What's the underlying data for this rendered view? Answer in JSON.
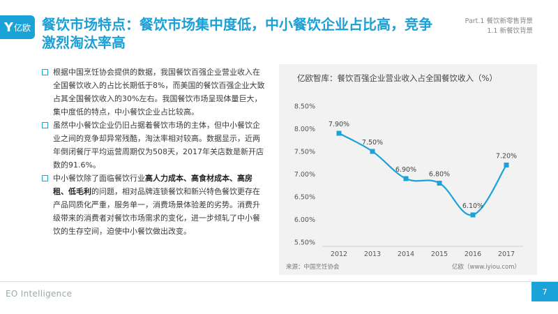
{
  "logo": {
    "mark": "Y",
    "text": "亿欧"
  },
  "title": "餐饮市场特点：餐饮市场集中度低，中小餐饮企业占比高，竞争激烈淘汰率高",
  "part": {
    "line1": "Part.1 餐饮新零售背景",
    "line2": "1.1 新餐饮背景"
  },
  "bullets": [
    {
      "text": "根据中国烹饪协会提供的数据，我国餐饮百强企业营业收入在全国餐饮收入的占比长期低于8%，而美国的餐饮百强企业大致占其全国餐饮收入的30%左右。我国餐饮市场呈现体量巨大，集中度低的特点，中小餐饮企业占比较高。"
    },
    {
      "text": "虽然中小餐饮企业仍旧占据着餐饮市场的主体，但中小餐饮企业之间的竞争却异常残酷，淘汰率相对较高。数据显示，近两年倒闭餐厅平均运营周期仅为508天，2017年关店数是新开店数的91.6%。"
    },
    {
      "pre": "中小餐饮除了面临餐饮行业",
      "bold": "高人力成本、高食材成本、高房租、低毛利",
      "post": "的问题，相对品牌连锁餐饮和新兴特色餐饮更存在产品同质化严重，服务单一，消费场景体验差的劣势。消费升级带来的消费者对餐饮市场需求的变化，进一步倾轧了中小餐饮的生存空间，迫使中小餐饮做出改变。"
    }
  ],
  "chart_data": {
    "type": "line",
    "title": "亿欧智库：餐饮百强企业营业收入占全国餐饮收入（%）",
    "x": [
      "2012",
      "2013",
      "2014",
      "2015",
      "2016",
      "2017"
    ],
    "values": [
      7.9,
      7.5,
      6.9,
      6.8,
      6.1,
      7.2
    ],
    "data_labels": [
      "7.90%",
      "7.50%",
      "6.90%",
      "6.80%",
      "6.10%",
      "7.20%"
    ],
    "y_ticks": [
      "8.50%",
      "8.00%",
      "7.50%",
      "7.00%",
      "6.50%",
      "6.00%",
      "5.50%"
    ],
    "ylim": [
      5.5,
      8.5
    ],
    "grid": false,
    "line_color": "#1aa3d8"
  },
  "source": "来源：中国烹饪协会",
  "credit": "亿欧（www.iyiou.com）",
  "footer": {
    "brand": "EO Intelligence",
    "page": "7"
  },
  "colors": {
    "accent": "#1aa3d8"
  }
}
